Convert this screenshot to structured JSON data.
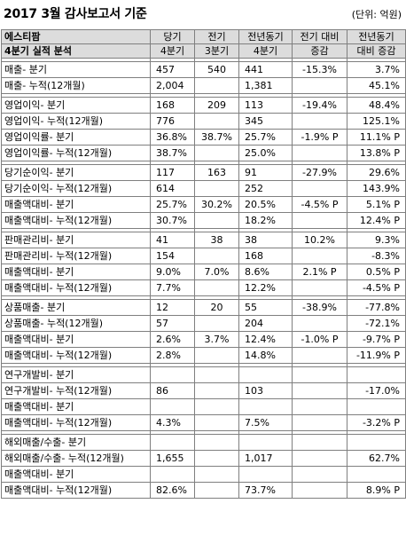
{
  "header": {
    "title": "2017 3월 감사보고서 기준",
    "unit": "(단위: 억원)"
  },
  "columns": {
    "company": "에스티팜",
    "section": "4분기 실적 분석",
    "c1": [
      "당기",
      "4분기"
    ],
    "c2": [
      "전기",
      "3분기"
    ],
    "c3": [
      "전년동기",
      "4분기"
    ],
    "c4": [
      "전기 대비",
      "증감"
    ],
    "c5": [
      "전년동기",
      "대비 증감"
    ]
  },
  "groups": [
    {
      "rows": [
        {
          "label": "매출- 분기",
          "v": [
            "457",
            "540",
            "441",
            "-15.3%",
            "3.7%"
          ]
        },
        {
          "label": "매출- 누적(12개월)",
          "v": [
            "2,004",
            "",
            "1,381",
            "",
            "45.1%"
          ]
        }
      ]
    },
    {
      "rows": [
        {
          "label": "영업이익- 분기",
          "v": [
            "168",
            "209",
            "113",
            "-19.4%",
            "48.4%"
          ]
        },
        {
          "label": "영업이익- 누적(12개월)",
          "v": [
            "776",
            "",
            "345",
            "",
            "125.1%"
          ]
        },
        {
          "label": "영업이익률- 분기",
          "v": [
            "36.8%",
            "38.7%",
            "25.7%",
            "-1.9% P",
            "11.1% P"
          ]
        },
        {
          "label": "영업이익률- 누적(12개월)",
          "v": [
            "38.7%",
            "",
            "25.0%",
            "",
            "13.8% P"
          ]
        }
      ]
    },
    {
      "rows": [
        {
          "label": "당기순이익- 분기",
          "v": [
            "117",
            "163",
            "91",
            "-27.9%",
            "29.6%"
          ]
        },
        {
          "label": "당기순이익- 누적(12개월)",
          "v": [
            "614",
            "",
            "252",
            "",
            "143.9%"
          ]
        },
        {
          "label": "매출액대비- 분기",
          "v": [
            "25.7%",
            "30.2%",
            "20.5%",
            "-4.5% P",
            "5.1% P"
          ]
        },
        {
          "label": "매출액대비- 누적(12개월)",
          "v": [
            "30.7%",
            "",
            "18.2%",
            "",
            "12.4% P"
          ]
        }
      ]
    },
    {
      "rows": [
        {
          "label": "판매관리비- 분기",
          "v": [
            "41",
            "38",
            "38",
            "10.2%",
            "9.3%"
          ]
        },
        {
          "label": "판매관리비- 누적(12개월)",
          "v": [
            "154",
            "",
            "168",
            "",
            "-8.3%"
          ]
        },
        {
          "label": "매출액대비- 분기",
          "v": [
            "9.0%",
            "7.0%",
            "8.6%",
            "2.1% P",
            "0.5% P"
          ]
        },
        {
          "label": "매출액대비- 누적(12개월)",
          "v": [
            "7.7%",
            "",
            "12.2%",
            "",
            "-4.5% P"
          ]
        }
      ]
    },
    {
      "rows": [
        {
          "label": "상품매출- 분기",
          "v": [
            "12",
            "20",
            "55",
            "-38.9%",
            "-77.8%"
          ]
        },
        {
          "label": "상품매출- 누적(12개월)",
          "v": [
            "57",
            "",
            "204",
            "",
            "-72.1%"
          ]
        },
        {
          "label": "매출액대비- 분기",
          "v": [
            "2.6%",
            "3.7%",
            "12.4%",
            "-1.0% P",
            "-9.7% P"
          ]
        },
        {
          "label": "매출액대비- 누적(12개월)",
          "v": [
            "2.8%",
            "",
            "14.8%",
            "",
            "-11.9% P"
          ]
        }
      ]
    },
    {
      "rows": [
        {
          "label": "연구개발비- 분기",
          "v": [
            "",
            "",
            "",
            "",
            ""
          ]
        },
        {
          "label": "연구개발비- 누적(12개월)",
          "v": [
            "86",
            "",
            "103",
            "",
            "-17.0%"
          ]
        },
        {
          "label": "매출액대비- 분기",
          "v": [
            "",
            "",
            "",
            "",
            ""
          ]
        },
        {
          "label": "매출액대비- 누적(12개월)",
          "v": [
            "4.3%",
            "",
            "7.5%",
            "",
            "-3.2% P"
          ]
        }
      ]
    },
    {
      "rows": [
        {
          "label": "해외매출/수출- 분기",
          "v": [
            "",
            "",
            "",
            "",
            ""
          ]
        },
        {
          "label": "해외매출/수출- 누적(12개월)",
          "v": [
            "1,655",
            "",
            "1,017",
            "",
            "62.7%"
          ]
        },
        {
          "label": "매출액대비- 분기",
          "v": [
            "",
            "",
            "",
            "",
            ""
          ]
        },
        {
          "label": "매출액대비- 누적(12개월)",
          "v": [
            "82.6%",
            "",
            "73.7%",
            "",
            "8.9% P"
          ]
        }
      ]
    }
  ]
}
